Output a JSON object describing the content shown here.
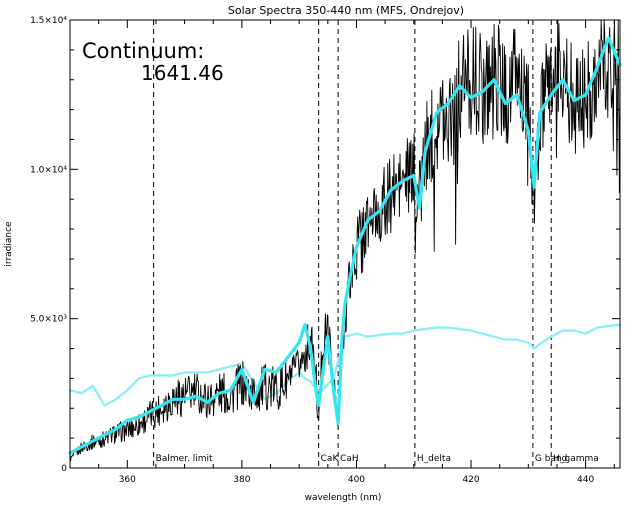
{
  "chart_data": {
    "type": "line",
    "title": "Solar Spectra 350-440 nm (MFS, Ondrejov)",
    "xlabel": "wavelength (nm)",
    "ylabel": "irradiance",
    "xlim": [
      350,
      446
    ],
    "ylim": [
      0,
      15000
    ],
    "x_ticks": [
      360,
      380,
      400,
      420,
      440
    ],
    "x_tick_labels": [
      "360",
      "380",
      "400",
      "420",
      "440"
    ],
    "y_ticks": [
      0,
      5000,
      10000,
      15000
    ],
    "y_tick_labels": [
      "0",
      "5.0×10³",
      "1.0×10⁴",
      "1.5×10⁴"
    ],
    "grid": false,
    "continuum": {
      "label": "Continuum:",
      "value": "1641.46"
    },
    "reference_lines": [
      {
        "x": 364.6,
        "label": "Balmer. limit"
      },
      {
        "x": 393.4,
        "label": "CaK"
      },
      {
        "x": 396.8,
        "label": "CaH"
      },
      {
        "x": 410.2,
        "label": "H_delta"
      },
      {
        "x": 430.8,
        "label": "G band"
      },
      {
        "x": 434.0,
        "label": "H_gamma"
      }
    ],
    "series": [
      {
        "color": "#000000",
        "style": "thin-noisy",
        "x": [
          350,
          352,
          354,
          356,
          358,
          360,
          362,
          364,
          366,
          368,
          370,
          372,
          374,
          376,
          378,
          380,
          382,
          384,
          386,
          388,
          390,
          391,
          392,
          393,
          393.4,
          394,
          395,
          396,
          396.8,
          397.5,
          398,
          399,
          400,
          402,
          404,
          406,
          408,
          410,
          411,
          412,
          414,
          416,
          418,
          420,
          422,
          424,
          426,
          428,
          430,
          431,
          432,
          434,
          436,
          438,
          440,
          442,
          444,
          446
        ],
        "y": [
          300,
          700,
          900,
          1000,
          1200,
          1300,
          1500,
          1800,
          2100,
          2400,
          2500,
          2600,
          2300,
          2600,
          2500,
          2900,
          2500,
          2800,
          2700,
          3000,
          3500,
          3900,
          4400,
          3000,
          1300,
          4200,
          4700,
          3000,
          1500,
          4000,
          5500,
          6500,
          7500,
          8300,
          8700,
          9300,
          9700,
          10000,
          9200,
          10800,
          11800,
          12200,
          12800,
          13400,
          12800,
          13600,
          12600,
          13400,
          12200,
          9000,
          11800,
          13300,
          13600,
          12300,
          12600,
          13400,
          13900,
          13700
        ]
      },
      {
        "color": "#33e6f2",
        "style": "thick-smooth",
        "x": [
          350,
          352,
          354,
          356,
          358,
          360,
          362,
          364,
          366,
          368,
          370,
          372,
          374,
          376,
          378,
          380,
          382,
          384,
          386,
          388,
          390,
          391,
          392,
          393,
          393.4,
          394,
          395,
          396,
          396.8,
          397.5,
          398,
          399,
          400,
          402,
          404,
          406,
          408,
          410,
          411,
          412,
          414,
          416,
          418,
          420,
          422,
          424,
          426,
          428,
          430,
          431,
          432,
          434,
          436,
          438,
          440,
          442,
          444,
          446
        ],
        "y": [
          500,
          700,
          900,
          1100,
          1300,
          1600,
          1700,
          1900,
          2100,
          2300,
          2300,
          2400,
          2200,
          2500,
          2600,
          3300,
          2200,
          3300,
          3200,
          3700,
          4200,
          4800,
          4000,
          2500,
          2100,
          3000,
          4400,
          2600,
          1500,
          4400,
          5500,
          6500,
          7400,
          8300,
          8600,
          9300,
          9600,
          9800,
          8700,
          10600,
          11900,
          12200,
          12800,
          12400,
          12600,
          13000,
          12200,
          12500,
          11300,
          9400,
          11900,
          12500,
          13000,
          12300,
          12500,
          13400,
          14400,
          13500
        ]
      },
      {
        "color": "#8ceff5",
        "style": "continuum-curve",
        "x": [
          350,
          352,
          354,
          356,
          358,
          360,
          362,
          364,
          366,
          368,
          370,
          372,
          374,
          376,
          378,
          380,
          382,
          384,
          386,
          388,
          390,
          391,
          392,
          393,
          394,
          395,
          396,
          397,
          398,
          400,
          402,
          404,
          406,
          408,
          410,
          412,
          414,
          416,
          418,
          420,
          422,
          424,
          426,
          428,
          430,
          431,
          432,
          434,
          436,
          438,
          440,
          442,
          444,
          446
        ],
        "y": [
          2600,
          2500,
          2750,
          2100,
          2300,
          2600,
          3000,
          3100,
          3100,
          3100,
          3200,
          3200,
          3200,
          3300,
          3400,
          3500,
          2900,
          2300,
          2500,
          2900,
          3200,
          3000,
          2900,
          2600,
          2600,
          2800,
          3000,
          3700,
          4400,
          4500,
          4400,
          4450,
          4500,
          4500,
          4600,
          4650,
          4700,
          4700,
          4650,
          4600,
          4500,
          4400,
          4300,
          4300,
          4200,
          4000,
          4150,
          4400,
          4600,
          4600,
          4500,
          4700,
          4750,
          4800
        ]
      }
    ]
  }
}
